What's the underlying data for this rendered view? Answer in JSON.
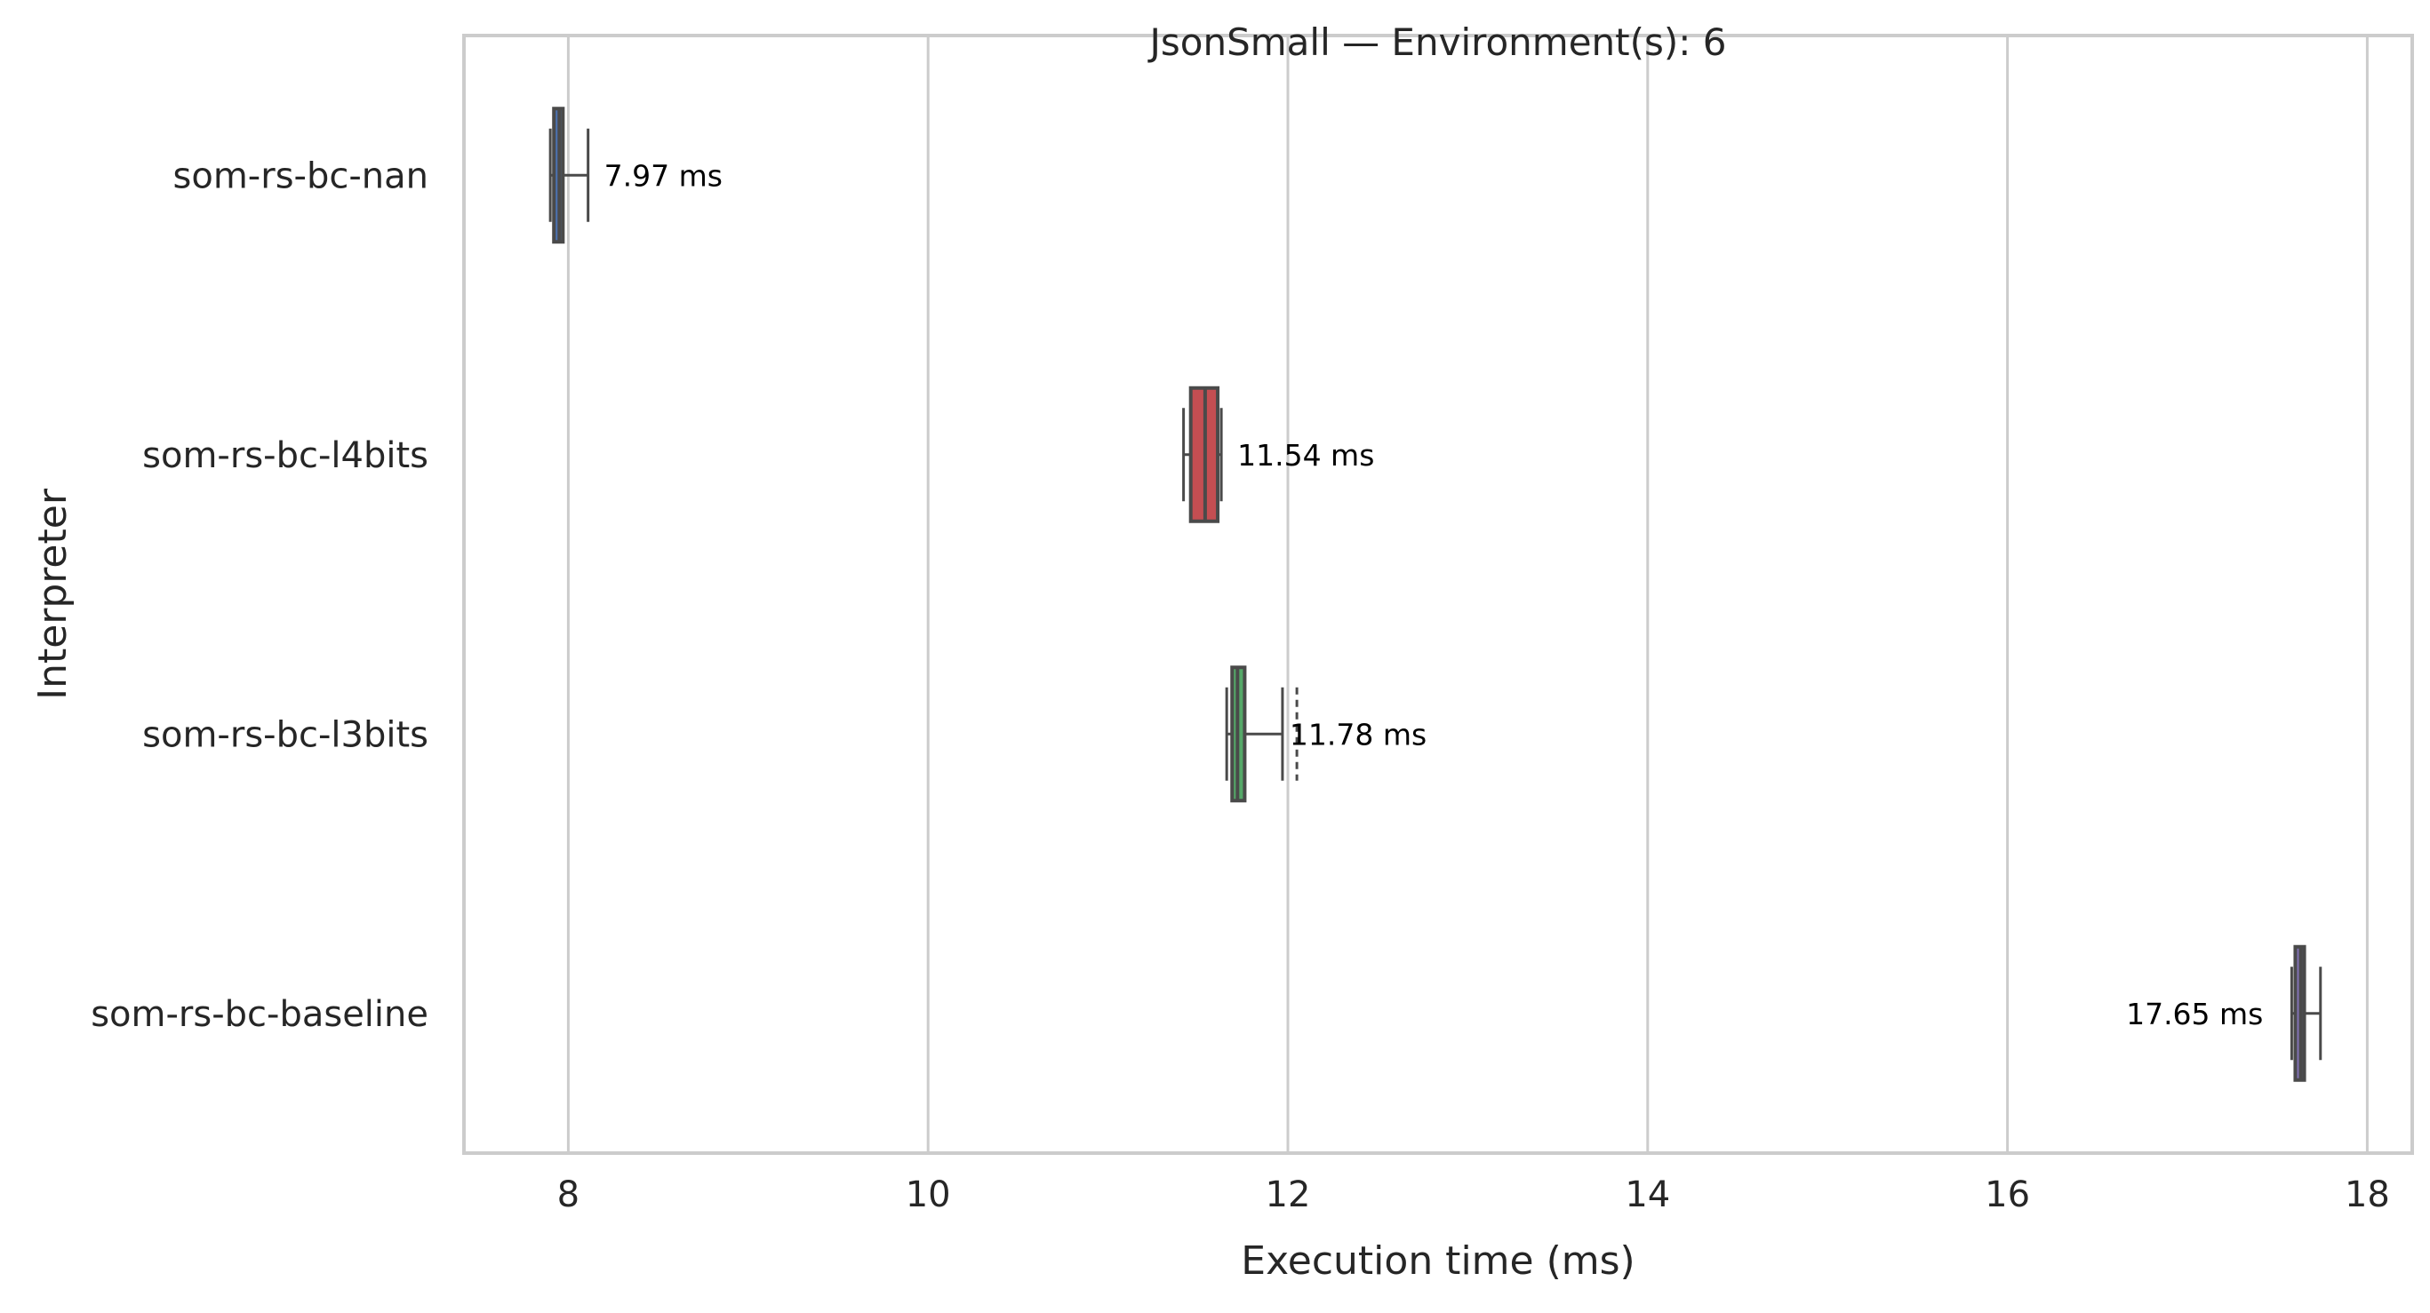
{
  "chart_data": {
    "type": "box",
    "orientation": "horizontal",
    "title": "JsonSmall — Environment(s): 6",
    "xlabel": "Execution time (ms)",
    "ylabel": "Interpreter",
    "xlim": [
      7.42,
      18.25
    ],
    "xticks": [
      8,
      10,
      12,
      14,
      16,
      18
    ],
    "grid": "vertical",
    "categories": [
      "som-rs-bc-nan",
      "som-rs-bc-l4bits",
      "som-rs-bc-l3bits",
      "som-rs-bc-baseline"
    ],
    "boxes": [
      {
        "name": "som-rs-bc-nan",
        "color": "#4c72b0",
        "whisker_low": 7.9,
        "q1": 7.92,
        "median": 7.95,
        "q3": 7.97,
        "whisker_high": 8.11,
        "outliers": [],
        "label": "7.97 ms"
      },
      {
        "name": "som-rs-bc-l4bits",
        "color": "#c44e52",
        "whisker_low": 11.42,
        "q1": 11.46,
        "median": 11.54,
        "q3": 11.61,
        "whisker_high": 11.63,
        "outliers": [],
        "label": "11.54 ms"
      },
      {
        "name": "som-rs-bc-l3bits",
        "color": "#55a868",
        "whisker_low": 11.66,
        "q1": 11.69,
        "median": 11.72,
        "q3": 11.76,
        "whisker_high": 11.97,
        "outliers": [
          12.05
        ],
        "label": "11.78 ms"
      },
      {
        "name": "som-rs-bc-baseline",
        "color": "#8172b2",
        "whisker_low": 17.58,
        "q1": 17.6,
        "median": 17.63,
        "q3": 17.65,
        "whisker_high": 17.74,
        "outliers": [],
        "label": "17.65 ms"
      }
    ],
    "colors": {
      "axis": "#cccccc",
      "grid": "#cccccc",
      "text": "#262626",
      "box_edge": "#4a4a4a",
      "label_text": "#000000"
    }
  }
}
